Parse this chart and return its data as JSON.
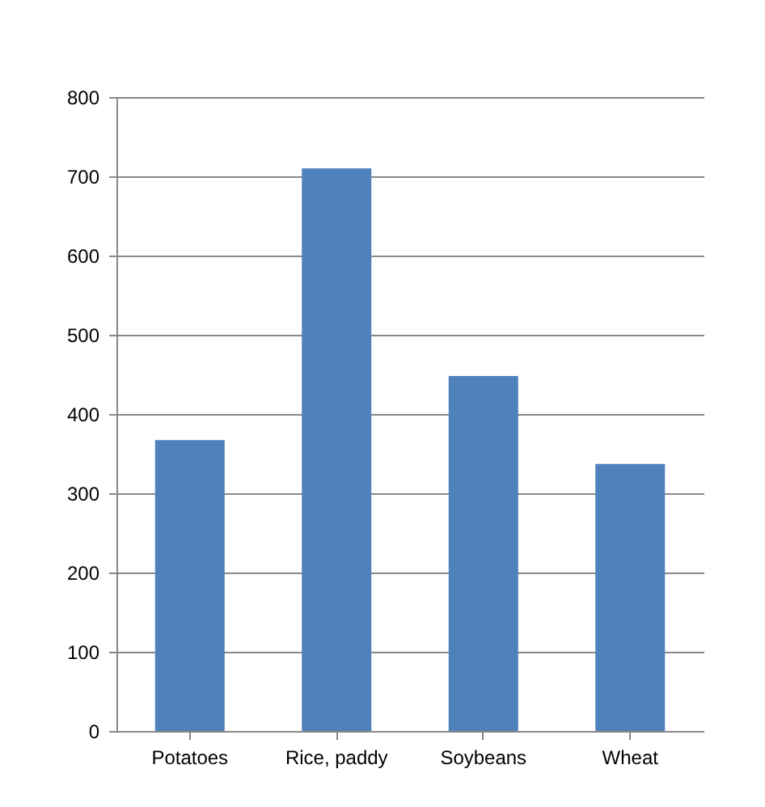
{
  "chart_data": {
    "type": "bar",
    "categories": [
      "Potatoes",
      "Rice, paddy",
      "Soybeans",
      "Wheat"
    ],
    "values": [
      367,
      710,
      448,
      337
    ],
    "color": "#4f81bd",
    "ylim": [
      0,
      800
    ],
    "yticks": [
      0,
      100,
      200,
      300,
      400,
      500,
      600,
      700,
      800
    ],
    "grid": "y"
  }
}
